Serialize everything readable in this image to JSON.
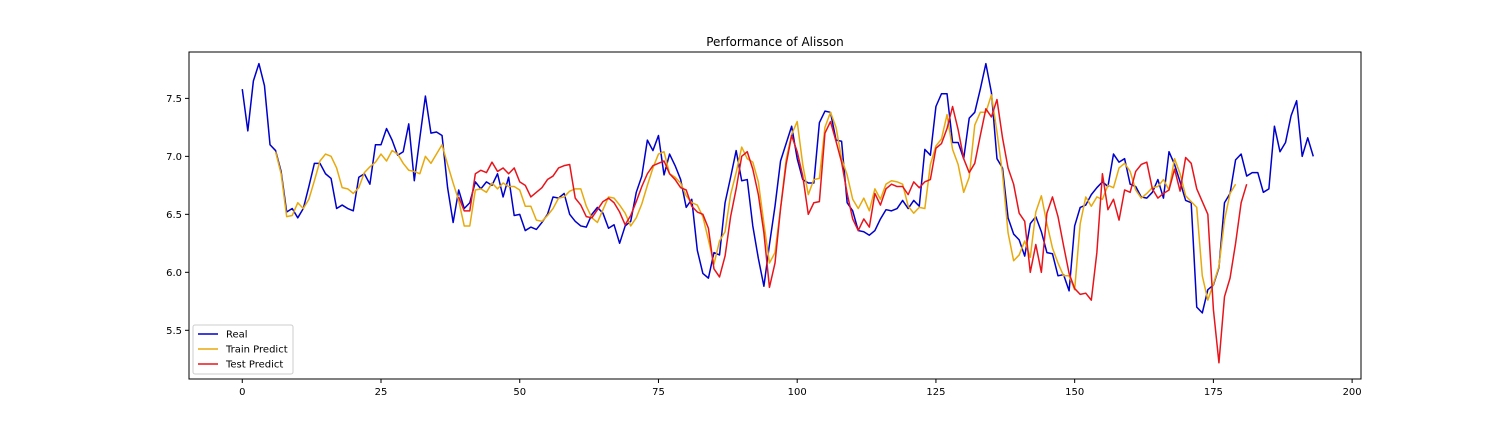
{
  "chart_data": {
    "type": "line",
    "title": "Performance of Alisson",
    "xlabel": "",
    "ylabel": "",
    "xlim": [
      -9.6,
      201.6
    ],
    "ylim": [
      5.08,
      7.9
    ],
    "xticks": [
      0,
      25,
      50,
      75,
      100,
      125,
      150,
      175,
      200
    ],
    "yticks": [
      5.5,
      6.0,
      6.5,
      7.0,
      7.5
    ],
    "xtick_labels": [
      "0",
      "25",
      "50",
      "75",
      "100",
      "125",
      "150",
      "175",
      "200"
    ],
    "ytick_labels": [
      "5.5",
      "6.0",
      "6.5",
      "7.0",
      "7.5"
    ],
    "grid": false,
    "legend_position": "lower-left",
    "series": [
      {
        "name": "Real",
        "color": "#0000cc",
        "x_start": 0,
        "values": [
          7.58,
          7.22,
          7.65,
          7.8,
          7.61,
          7.1,
          7.05,
          6.87,
          6.52,
          6.55,
          6.47,
          6.55,
          6.74,
          6.94,
          6.94,
          6.85,
          6.81,
          6.55,
          6.58,
          6.55,
          6.53,
          6.82,
          6.85,
          6.76,
          7.1,
          7.1,
          7.24,
          7.14,
          7.01,
          7.04,
          7.28,
          6.79,
          7.16,
          7.52,
          7.2,
          7.21,
          7.18,
          6.73,
          6.43,
          6.71,
          6.55,
          6.6,
          6.78,
          6.72,
          6.78,
          6.75,
          6.85,
          6.65,
          6.82,
          6.49,
          6.5,
          6.36,
          6.39,
          6.37,
          6.43,
          6.5,
          6.65,
          6.64,
          6.68,
          6.5,
          6.44,
          6.4,
          6.39,
          6.5,
          6.56,
          6.51,
          6.38,
          6.41,
          6.25,
          6.4,
          6.44,
          6.69,
          6.83,
          7.14,
          7.05,
          7.18,
          6.84,
          7.02,
          6.92,
          6.8,
          6.56,
          6.63,
          6.19,
          5.99,
          5.95,
          6.17,
          6.15,
          6.6,
          6.82,
          7.05,
          6.79,
          6.8,
          6.4,
          6.12,
          5.88,
          6.24,
          6.57,
          6.96,
          7.11,
          7.26,
          6.98,
          6.8,
          6.77,
          6.77,
          7.29,
          7.39,
          7.38,
          7.14,
          7.13,
          6.6,
          6.53,
          6.36,
          6.35,
          6.32,
          6.36,
          6.46,
          6.54,
          6.53,
          6.55,
          6.62,
          6.55,
          6.62,
          6.57,
          7.06,
          7.01,
          7.43,
          7.54,
          7.54,
          7.12,
          7.12,
          6.98,
          7.33,
          7.38,
          7.58,
          7.8,
          7.55,
          6.98,
          6.9,
          6.47,
          6.33,
          6.28,
          6.14,
          6.42,
          6.48,
          6.35,
          6.17,
          6.16,
          5.97,
          5.98,
          5.84,
          6.4,
          6.56,
          6.58,
          6.67,
          6.73,
          6.78,
          6.74,
          7.02,
          6.95,
          6.98,
          6.76,
          6.74,
          6.65,
          6.64,
          6.69,
          6.8,
          6.64,
          7.04,
          6.93,
          6.78,
          6.62,
          6.6,
          5.7,
          5.65,
          5.85,
          5.89,
          6.04,
          6.6,
          6.68,
          6.97,
          7.02,
          6.83,
          6.86,
          6.86,
          6.69,
          6.72,
          7.26,
          7.04,
          7.12,
          7.35,
          7.48,
          7.0,
          7.16,
          7.0
        ]
      },
      {
        "name": "Train Predict",
        "color": "#e8a90c",
        "x_start": 6,
        "values": [
          7.04,
          6.85,
          6.48,
          6.49,
          6.6,
          6.55,
          6.63,
          6.79,
          6.96,
          7.02,
          7.0,
          6.9,
          6.73,
          6.72,
          6.68,
          6.73,
          6.86,
          6.91,
          6.95,
          7.02,
          6.96,
          7.05,
          7.02,
          6.94,
          6.88,
          6.87,
          6.85,
          7.0,
          6.94,
          7.02,
          7.1,
          6.93,
          6.77,
          6.62,
          6.4,
          6.4,
          6.71,
          6.72,
          6.69,
          6.77,
          6.72,
          6.77,
          6.74,
          6.74,
          6.71,
          6.57,
          6.57,
          6.45,
          6.44,
          6.49,
          6.55,
          6.64,
          6.65,
          6.7,
          6.72,
          6.72,
          6.57,
          6.47,
          6.43,
          6.54,
          6.65,
          6.64,
          6.58,
          6.51,
          6.4,
          6.47,
          6.59,
          6.75,
          6.9,
          7.02,
          7.04,
          6.85,
          6.82,
          6.77,
          6.66,
          6.6,
          6.58,
          6.48,
          6.28,
          6.07,
          6.27,
          6.35,
          6.67,
          6.86,
          7.08,
          6.98,
          6.95,
          6.78,
          6.42,
          6.08,
          6.17,
          6.55,
          6.97,
          7.19,
          7.3,
          6.93,
          6.67,
          6.8,
          6.81,
          7.25,
          7.38,
          7.25,
          6.98,
          6.84,
          6.63,
          6.55,
          6.64,
          6.53,
          6.72,
          6.63,
          6.76,
          6.79,
          6.78,
          6.76,
          6.57,
          6.51,
          6.56,
          6.55,
          6.93,
          7.09,
          7.15,
          7.36,
          7.06,
          6.93,
          6.69,
          6.82,
          7.27,
          7.38,
          7.38,
          7.53,
          7.21,
          6.85,
          6.34,
          6.1,
          6.15,
          6.27,
          6.13,
          6.52,
          6.66,
          6.42,
          6.21,
          6.08,
          5.97,
          5.97,
          5.85,
          6.42,
          6.65,
          6.57,
          6.65,
          6.63,
          6.75,
          6.73,
          6.9,
          6.94,
          6.87,
          6.71,
          6.64,
          6.68,
          6.73,
          6.74,
          6.8,
          6.71,
          6.98,
          6.85,
          6.66,
          6.61,
          6.56,
          5.97,
          5.76,
          5.9,
          6.05,
          6.45,
          6.68,
          6.76
        ]
      },
      {
        "name": "Test Predict",
        "color": "#e8141b",
        "x_start": 39,
        "values": [
          6.65,
          6.53,
          6.53,
          6.85,
          6.88,
          6.86,
          6.95,
          6.87,
          6.9,
          6.85,
          6.9,
          6.78,
          6.75,
          6.65,
          6.69,
          6.73,
          6.8,
          6.83,
          6.9,
          6.92,
          6.93,
          6.64,
          6.58,
          6.48,
          6.47,
          6.54,
          6.61,
          6.64,
          6.6,
          6.52,
          6.41,
          6.49,
          6.61,
          6.74,
          6.85,
          6.92,
          6.94,
          6.96,
          6.85,
          6.8,
          6.73,
          6.71,
          6.57,
          6.52,
          6.5,
          6.38,
          6.03,
          5.96,
          6.14,
          6.48,
          6.72,
          7.0,
          7.04,
          6.89,
          6.67,
          6.34,
          5.87,
          6.08,
          6.55,
          6.93,
          7.18,
          7.04,
          6.83,
          6.5,
          6.6,
          6.61,
          7.2,
          7.3,
          7.13,
          6.95,
          6.68,
          6.46,
          6.36,
          6.46,
          6.39,
          6.68,
          6.58,
          6.72,
          6.76,
          6.74,
          6.74,
          6.67,
          6.78,
          6.73,
          6.78,
          6.8,
          7.07,
          7.11,
          7.24,
          7.43,
          7.23,
          6.98,
          6.86,
          6.94,
          7.18,
          7.41,
          7.34,
          7.49,
          7.16,
          6.9,
          6.76,
          6.51,
          6.44,
          6.0,
          6.24,
          6.0,
          6.51,
          6.65,
          6.48,
          6.23,
          5.99,
          5.86,
          5.81,
          5.82,
          5.76,
          6.17,
          6.85,
          6.54,
          6.63,
          6.45,
          6.71,
          6.69,
          6.87,
          6.93,
          6.95,
          6.72,
          6.64,
          6.68,
          6.71,
          6.89,
          6.7,
          6.99,
          6.94,
          6.72,
          6.61,
          6.5,
          5.68,
          5.22,
          5.79,
          5.95,
          6.25,
          6.6,
          6.76
        ]
      }
    ]
  }
}
